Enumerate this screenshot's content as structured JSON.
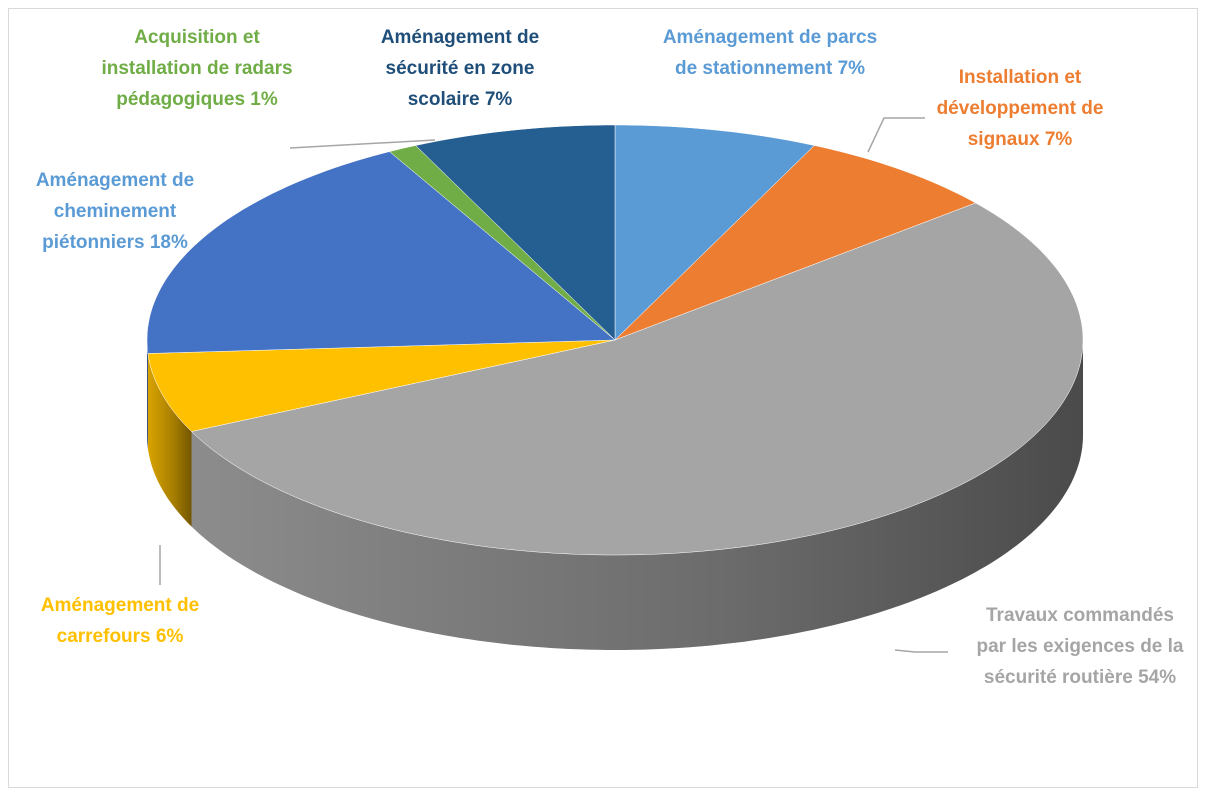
{
  "chart_data": {
    "type": "pie",
    "categories": [
      "Aménagement de parcs de stationnement",
      "Installation et développement de signaux",
      "Travaux commandés par les exigences de la sécurité routière",
      "Aménagement de carrefours",
      "Aménagement de cheminement piétonniers",
      "Acquisition et installation de radars pédagogiques",
      "Aménagement de sécurité en zone scolaire"
    ],
    "values": [
      7,
      7,
      54,
      6,
      18,
      1,
      7
    ],
    "value_labels": [
      "7%",
      "7%",
      "54%",
      "6%",
      "18%",
      "1%",
      "7%"
    ],
    "colors": [
      "#5b9bd5",
      "#ed7d31",
      "#a5a5a5",
      "#ffc000",
      "#4472c4",
      "#70ad47",
      "#255e91"
    ],
    "label_colors": [
      "#5b9bd5",
      "#ed7d31",
      "#a5a5a5",
      "#ffc000",
      "#5b9bd5",
      "#70ad47",
      "#1f4e79"
    ]
  }
}
